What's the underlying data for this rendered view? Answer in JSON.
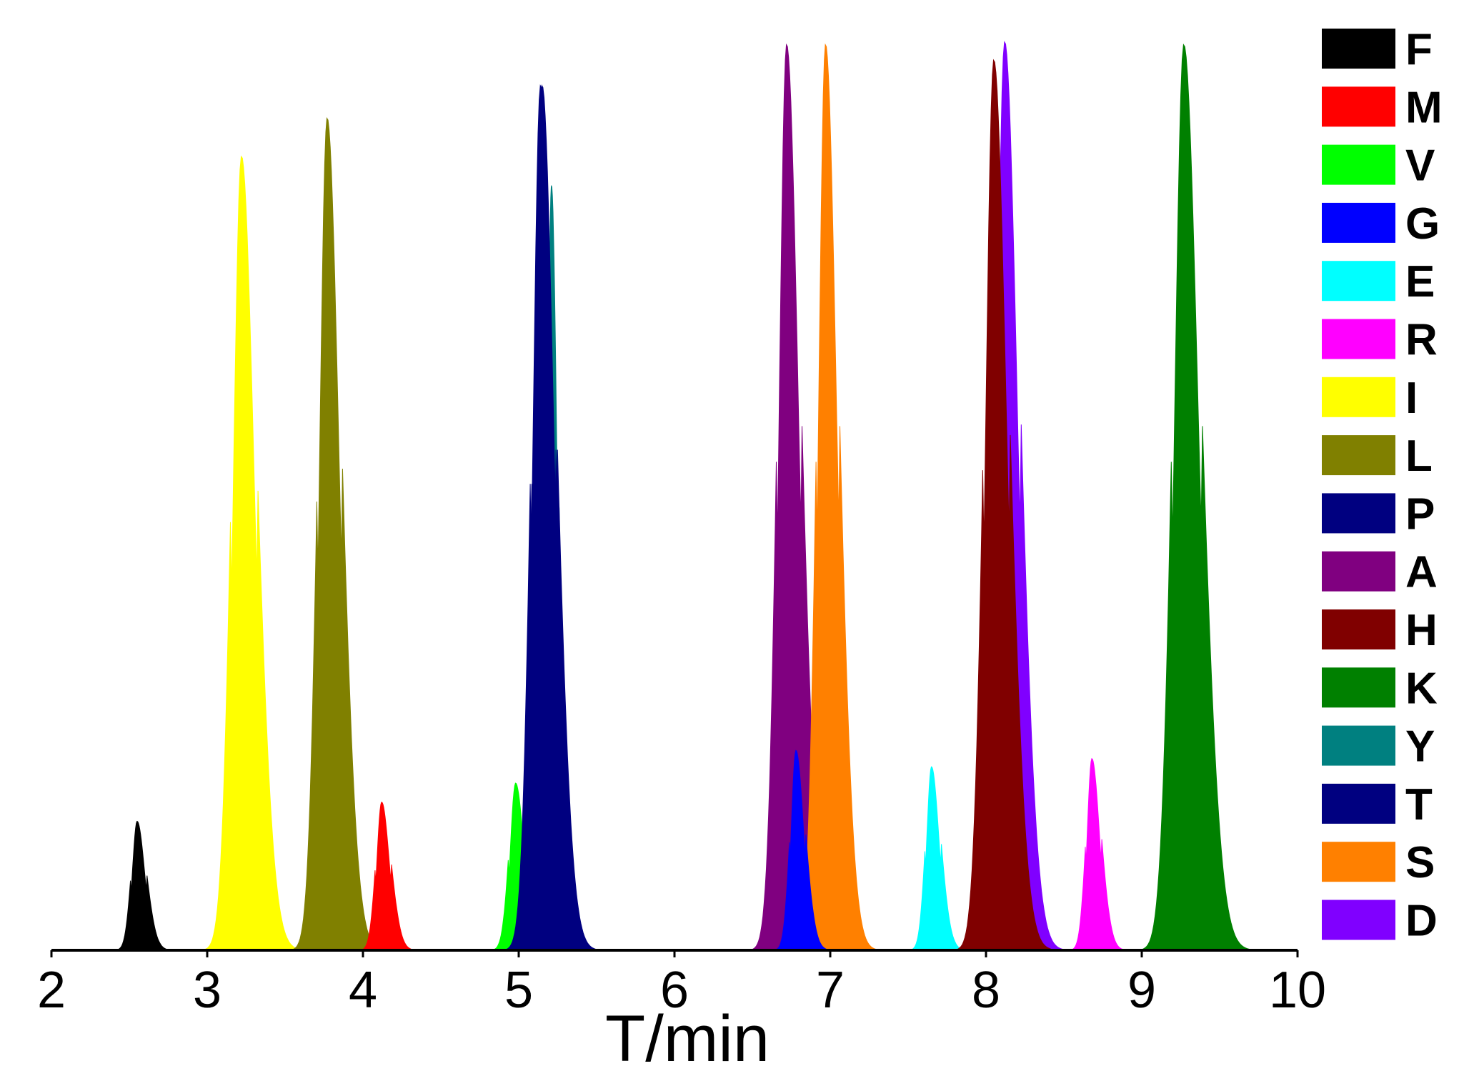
{
  "chart_data": {
    "type": "area",
    "xlabel": "T/min",
    "ylabel": "",
    "xlim": [
      2,
      10
    ],
    "ylim": [
      0,
      100
    ],
    "x_ticks": [
      "2",
      "3",
      "4",
      "5",
      "6",
      "7",
      "8",
      "9",
      "10"
    ],
    "grid": false,
    "legend_position": "right",
    "series": [
      {
        "name": "F",
        "color": "#000000",
        "peak_time": 2.55,
        "height": 14.2,
        "sigma": 0.045
      },
      {
        "name": "M",
        "color": "#ff0000",
        "peak_time": 4.12,
        "height": 16.3,
        "sigma": 0.045
      },
      {
        "name": "V",
        "color": "#00ff00",
        "peak_time": 4.98,
        "height": 18.4,
        "sigma": 0.05
      },
      {
        "name": "G",
        "color": "#0000ff",
        "peak_time": 6.78,
        "height": 22.0,
        "sigma": 0.045
      },
      {
        "name": "E",
        "color": "#00ffff",
        "peak_time": 7.65,
        "height": 20.2,
        "sigma": 0.045
      },
      {
        "name": "R",
        "color": "#ff00ff",
        "peak_time": 8.68,
        "height": 21.1,
        "sigma": 0.045
      },
      {
        "name": "I",
        "color": "#ffff00",
        "peak_time": 3.22,
        "height": 87.4,
        "sigma": 0.075
      },
      {
        "name": "L",
        "color": "#808000",
        "peak_time": 3.77,
        "height": 91.6,
        "sigma": 0.07
      },
      {
        "name": "P",
        "color": "#000080",
        "peak_time": 5.15,
        "height": 95.2,
        "sigma": 0.07
      },
      {
        "name": "A",
        "color": "#800080",
        "peak_time": 6.72,
        "height": 99.7,
        "sigma": 0.07
      },
      {
        "name": "H",
        "color": "#800000",
        "peak_time": 8.05,
        "height": 98.0,
        "sigma": 0.075
      },
      {
        "name": "K",
        "color": "#008000",
        "peak_time": 9.27,
        "height": 99.7,
        "sigma": 0.085
      },
      {
        "name": "Y",
        "color": "#008080",
        "peak_time": 5.21,
        "height": 84.2,
        "sigma": 0.035
      },
      {
        "name": "T",
        "color": "#000080",
        "peak_time": 5.14,
        "height": 95.2,
        "sigma": 0.07
      },
      {
        "name": "S",
        "color": "#ff8000",
        "peak_time": 6.97,
        "height": 99.7,
        "sigma": 0.065
      },
      {
        "name": "D",
        "color": "#8000ff",
        "peak_time": 8.12,
        "height": 100.0,
        "sigma": 0.075
      }
    ],
    "draw_order": [
      "I",
      "L",
      "F",
      "M",
      "V",
      "Y",
      "P",
      "T",
      "A",
      "S",
      "G",
      "E",
      "D",
      "H",
      "R",
      "K"
    ]
  }
}
